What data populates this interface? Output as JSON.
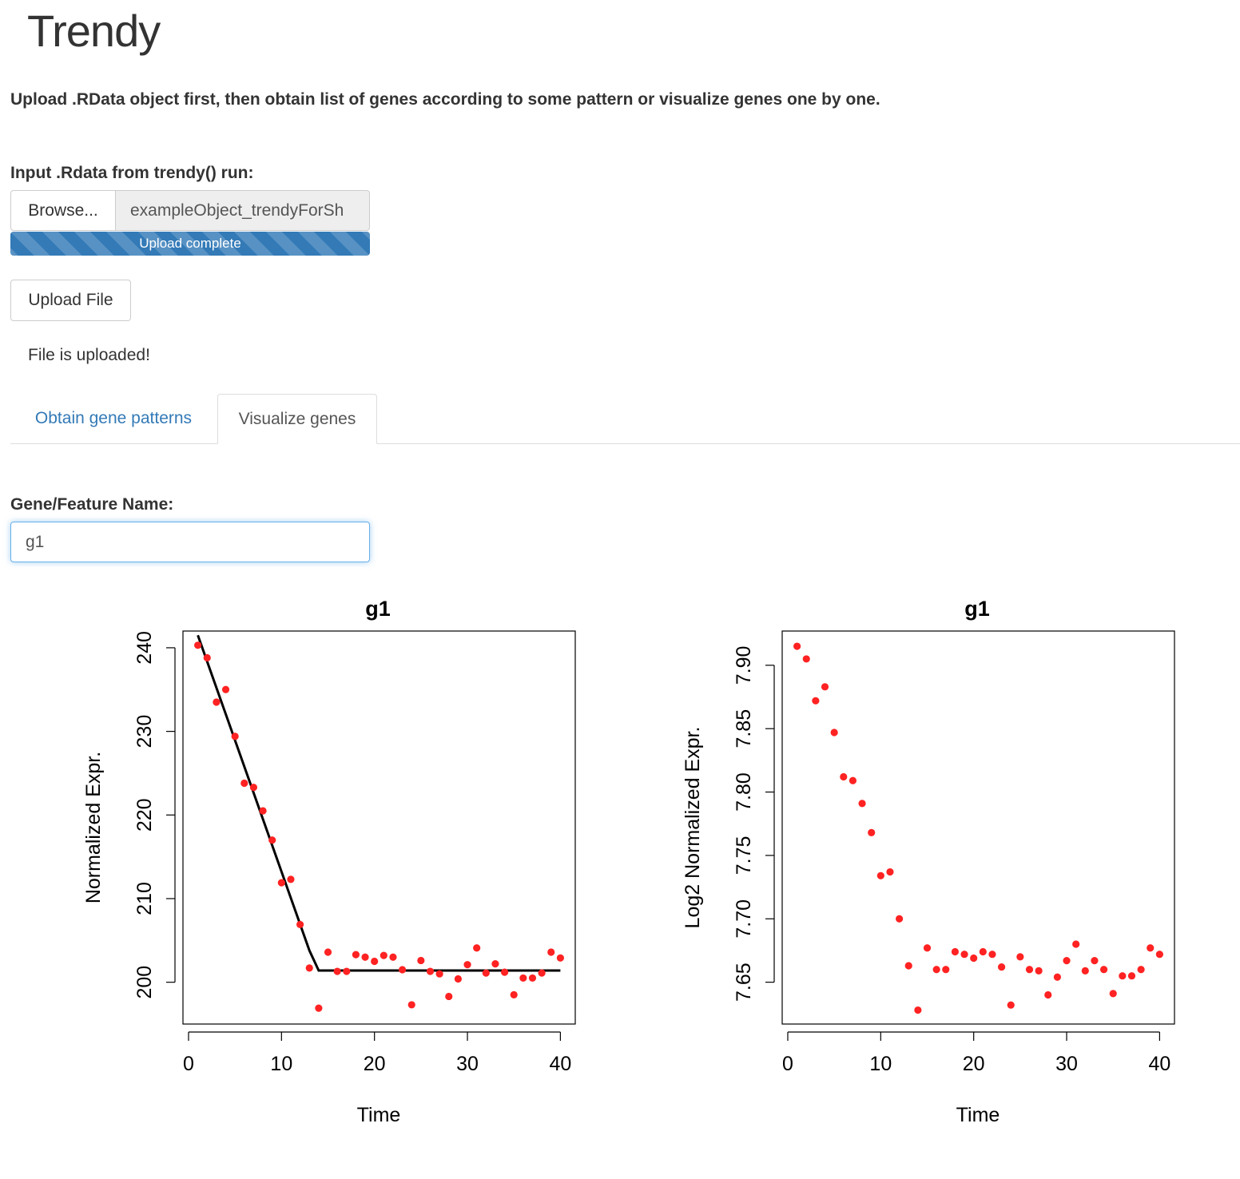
{
  "app": {
    "title": "Trendy",
    "intro": "Upload .RData object first, then obtain list of genes according to some pattern or visualize genes one by one."
  },
  "file_input": {
    "label": "Input .Rdata from trendy() run:",
    "browse_label": "Browse...",
    "file_name": "exampleObject_trendyForSh",
    "progress_text": "Upload complete",
    "progress": 1.0
  },
  "upload_button": "Upload File",
  "status_text": "File is uploaded!",
  "tabs": [
    {
      "label": "Obtain gene patterns",
      "active": false
    },
    {
      "label": "Visualize genes",
      "active": true
    }
  ],
  "gene_input": {
    "label": "Gene/Feature Name:",
    "value": "g1"
  },
  "colors": {
    "accent": "#337ab7",
    "points": "#ff2222",
    "fit_line": "#000000"
  },
  "chart_data": [
    {
      "type": "scatter",
      "title": "g1",
      "xlabel": "Time",
      "ylabel": "Normalized Expr.",
      "xlim": [
        -0.6,
        41.6
      ],
      "ylim": [
        195,
        242
      ],
      "x_ticks": [
        0,
        10,
        20,
        30,
        40
      ],
      "y_ticks": [
        200,
        210,
        220,
        230,
        240
      ],
      "x": [
        1,
        2,
        3,
        4,
        5,
        6,
        7,
        8,
        9,
        10,
        11,
        12,
        13,
        14,
        15,
        16,
        17,
        18,
        19,
        20,
        21,
        22,
        23,
        24,
        25,
        26,
        27,
        28,
        29,
        30,
        31,
        32,
        33,
        34,
        35,
        36,
        37,
        38,
        39,
        40
      ],
      "y": [
        240.3,
        238.8,
        233.5,
        235.0,
        229.4,
        223.8,
        223.3,
        220.5,
        217.0,
        211.9,
        212.3,
        206.9,
        201.7,
        196.9,
        203.6,
        201.3,
        201.3,
        203.3,
        203.0,
        202.5,
        203.2,
        203.0,
        201.5,
        197.3,
        202.6,
        201.3,
        201.0,
        198.3,
        200.4,
        202.1,
        204.1,
        201.1,
        202.2,
        201.2,
        198.5,
        200.5,
        200.5,
        201.1,
        203.6,
        202.9
      ],
      "fit_line": {
        "x": [
          1,
          13,
          14,
          40
        ],
        "y": [
          241.5,
          203.8,
          201.4,
          201.4
        ]
      }
    },
    {
      "type": "scatter",
      "title": "g1",
      "xlabel": "Time",
      "ylabel": "Log2 Normalized Expr.",
      "xlim": [
        -0.6,
        41.6
      ],
      "ylim": [
        7.617,
        7.927
      ],
      "x_ticks": [
        0,
        10,
        20,
        30,
        40
      ],
      "y_ticks": [
        7.65,
        7.7,
        7.75,
        7.8,
        7.85,
        7.9
      ],
      "y_tick_labels": [
        "7.65",
        "7.70",
        "7.75",
        "7.80",
        "7.85",
        "7.90"
      ],
      "x": [
        1,
        2,
        3,
        4,
        5,
        6,
        7,
        8,
        9,
        10,
        11,
        12,
        13,
        14,
        15,
        16,
        17,
        18,
        19,
        20,
        21,
        22,
        23,
        24,
        25,
        26,
        27,
        28,
        29,
        30,
        31,
        32,
        33,
        34,
        35,
        36,
        37,
        38,
        39,
        40
      ],
      "y": [
        7.915,
        7.905,
        7.872,
        7.883,
        7.847,
        7.812,
        7.809,
        7.791,
        7.768,
        7.734,
        7.737,
        7.7,
        7.663,
        7.628,
        7.677,
        7.66,
        7.66,
        7.674,
        7.672,
        7.669,
        7.674,
        7.672,
        7.662,
        7.632,
        7.67,
        7.66,
        7.659,
        7.64,
        7.654,
        7.667,
        7.68,
        7.659,
        7.667,
        7.66,
        7.641,
        7.655,
        7.655,
        7.66,
        7.677,
        7.672
      ]
    }
  ]
}
